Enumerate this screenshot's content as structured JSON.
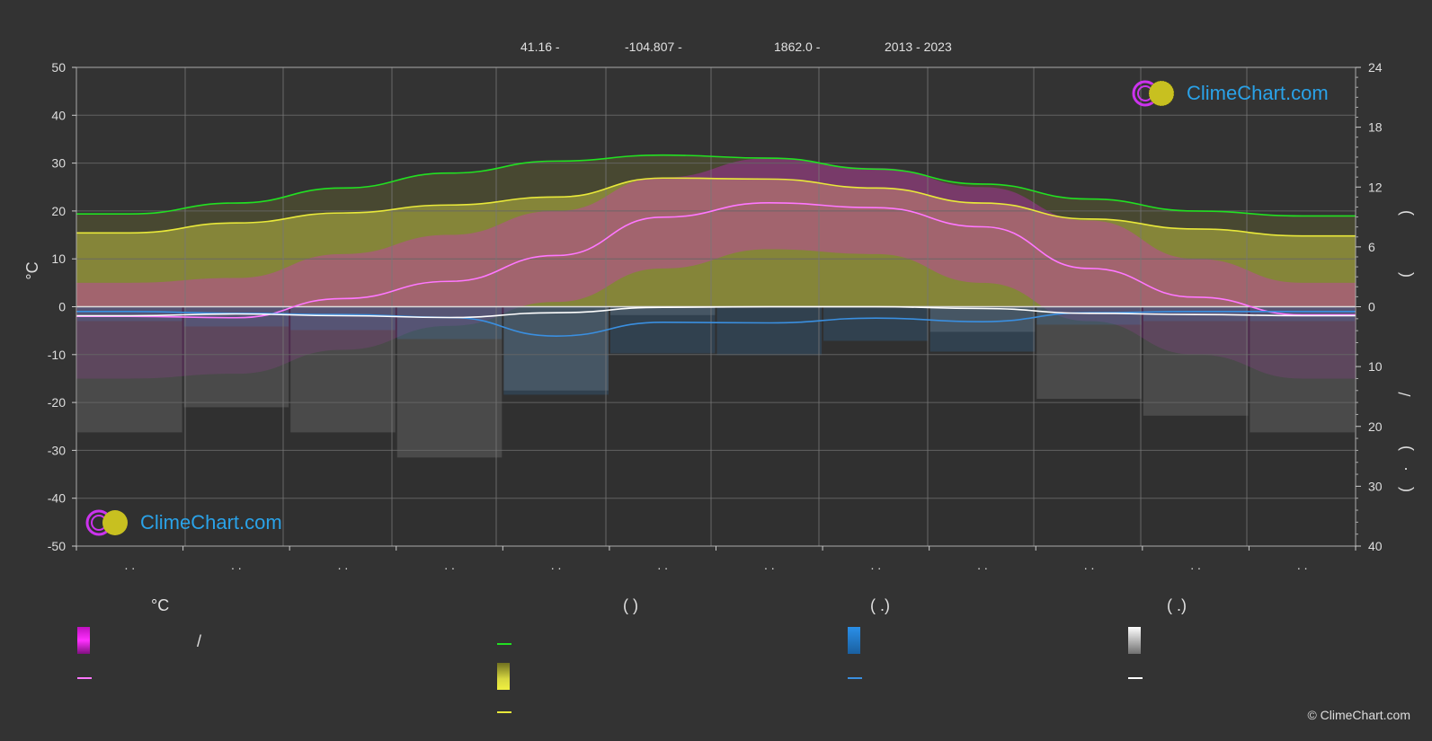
{
  "header": {
    "lat": "41.16 -",
    "lon": "-104.807 -",
    "elev": "1862.0 -",
    "years": "2013 - 2023"
  },
  "logo_text": "ClimeChart.com",
  "copyright": "© ClimeChart.com",
  "legend": {
    "col1_title": "°C",
    "col2_title": "(          )",
    "col3_title": "(   .)",
    "col4_title": "(   .)",
    "col1_item1_text": "/"
  },
  "colors": {
    "background": "#333333",
    "daylight": "#22e022",
    "sunshine": "#e8e83a",
    "mean_temp": "#ff77ff",
    "rain": "#3a8fe0",
    "snow": "#ffffff",
    "temp_range": "#e020e0",
    "sunshine_fill": "#b8b840"
  },
  "chart_data": {
    "type": "line",
    "x_count": 12,
    "x_tick_labels": [
      ". .",
      ". .",
      ". .",
      ". .",
      ". .",
      ". .",
      ". .",
      ". .",
      ". .",
      ". .",
      ". .",
      ". ."
    ],
    "y_left": {
      "label": "°C",
      "ylim": [
        -50,
        50
      ],
      "ticks": [
        50,
        40,
        30,
        20,
        10,
        0,
        -10,
        -20,
        -30,
        -40,
        -50
      ]
    },
    "y_right_top": {
      "ylim": [
        0,
        24
      ],
      "ticks": [
        24,
        18,
        12,
        6,
        0
      ]
    },
    "y_right_bottom": {
      "ylim": [
        0,
        40
      ],
      "ticks": [
        10,
        20,
        30,
        40
      ]
    },
    "y_right_label_glyphs": [
      ")",
      "(",
      "/",
      ")",
      "·",
      "("
    ],
    "series": [
      {
        "key": "daylight",
        "axis": "right_top",
        "values": [
          9.3,
          10.4,
          11.9,
          13.4,
          14.6,
          15.2,
          14.9,
          13.8,
          12.3,
          10.8,
          9.6,
          9.1
        ]
      },
      {
        "key": "sunshine",
        "axis": "right_top",
        "values": [
          7.4,
          8.4,
          9.4,
          10.2,
          11.0,
          12.9,
          12.8,
          11.9,
          10.4,
          8.8,
          7.8,
          7.1
        ]
      },
      {
        "key": "mean_temp",
        "axis": "left",
        "values": [
          -2.0,
          -2.3,
          1.7,
          5.3,
          10.7,
          18.7,
          21.7,
          20.7,
          16.7,
          8.0,
          2.0,
          -1.7
        ]
      },
      {
        "key": "rain",
        "axis": "right_bottom",
        "values": [
          0.8,
          1.1,
          1.3,
          1.8,
          4.9,
          2.6,
          2.7,
          1.9,
          2.5,
          1.0,
          0.8,
          0.8
        ]
      },
      {
        "key": "snow",
        "axis": "right_bottom",
        "values": [
          1.5,
          1.2,
          1.5,
          1.8,
          1.0,
          0.1,
          0.0,
          0.0,
          0.3,
          1.1,
          1.3,
          1.5
        ]
      }
    ],
    "temp_max_values": [
      5,
      6,
      11,
      15,
      20,
      27,
      31,
      29,
      25,
      18,
      10,
      5
    ],
    "temp_min_values": [
      -15,
      -14,
      -9,
      -4,
      1,
      8,
      12,
      11,
      5,
      -3,
      -10,
      -15
    ]
  }
}
